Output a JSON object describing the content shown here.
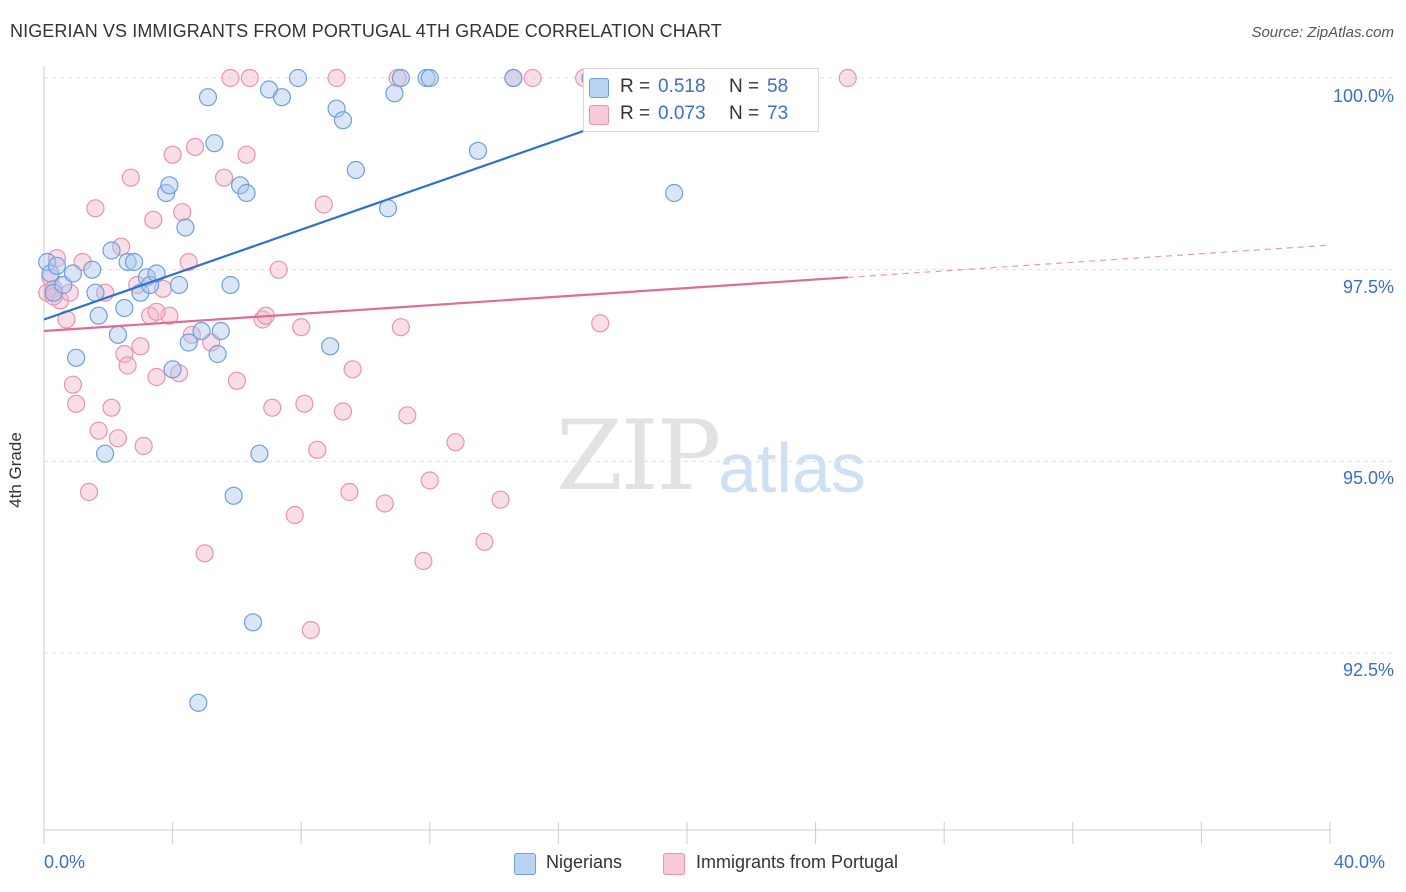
{
  "header": {
    "title": "NIGERIAN VS IMMIGRANTS FROM PORTUGAL 4TH GRADE CORRELATION CHART",
    "source": "Source: ZipAtlas.com"
  },
  "watermark": {
    "zip": "ZIP",
    "atlas": "atlas"
  },
  "legend_top": {
    "rows": [
      {
        "r_label": "R =",
        "r_value": "0.518",
        "n_label": "N =",
        "n_value": "58"
      },
      {
        "r_label": "R =",
        "r_value": "0.073",
        "n_label": "N =",
        "n_value": "73"
      }
    ]
  },
  "legend_bottom": {
    "items": [
      {
        "label": "Nigerians"
      },
      {
        "label": "Immigrants from Portugal"
      }
    ]
  },
  "colors": {
    "blue_fill": "#a8c8f0",
    "blue_stroke": "#6f9fd8",
    "blue_line": "#2f6fce",
    "pink_fill": "#f5b6c9",
    "pink_stroke": "#e793b0",
    "pink_line": "#e06b97",
    "grid": "#e0e0e0",
    "axis_text": "#3d6fc4"
  },
  "chart_data": {
    "type": "scatter",
    "title": "NIGERIAN VS IMMIGRANTS FROM PORTUGAL 4TH GRADE CORRELATION CHART",
    "xlabel": "",
    "ylabel": "4th Grade",
    "xlim": [
      0,
      40
    ],
    "ylim": [
      90.8,
      100.4
    ],
    "x_tick_labels": [
      "0.0%",
      "40.0%"
    ],
    "y_tick_labels": [
      "100.0%",
      "97.5%",
      "95.0%",
      "92.5%"
    ],
    "y_ticks": [
      100.0,
      97.5,
      95.0,
      92.5
    ],
    "grid": true,
    "series": [
      {
        "name": "Nigerians",
        "color": "blue",
        "r": 0.518,
        "n": 58,
        "trend": {
          "x": [
            0,
            21.5
          ],
          "y": [
            96.85,
            100.0
          ]
        },
        "points": [
          [
            0.1,
            97.6
          ],
          [
            0.2,
            97.45
          ],
          [
            0.3,
            97.2
          ],
          [
            0.4,
            97.55
          ],
          [
            0.6,
            97.3
          ],
          [
            0.9,
            97.45
          ],
          [
            1.0,
            96.35
          ],
          [
            1.5,
            97.5
          ],
          [
            1.6,
            97.2
          ],
          [
            1.7,
            96.9
          ],
          [
            1.9,
            95.1
          ],
          [
            2.1,
            97.75
          ],
          [
            2.3,
            96.65
          ],
          [
            2.5,
            97.0
          ],
          [
            2.6,
            97.6
          ],
          [
            2.8,
            97.6
          ],
          [
            3.0,
            97.2
          ],
          [
            3.2,
            97.4
          ],
          [
            3.3,
            97.3
          ],
          [
            3.5,
            97.45
          ],
          [
            3.8,
            98.5
          ],
          [
            3.9,
            98.6
          ],
          [
            4.0,
            96.2
          ],
          [
            4.2,
            97.3
          ],
          [
            4.4,
            98.05
          ],
          [
            4.5,
            96.55
          ],
          [
            4.9,
            96.7
          ],
          [
            5.1,
            99.75
          ],
          [
            5.3,
            99.15
          ],
          [
            5.4,
            96.4
          ],
          [
            5.5,
            96.7
          ],
          [
            5.8,
            97.3
          ],
          [
            5.9,
            94.55
          ],
          [
            6.1,
            98.6
          ],
          [
            6.3,
            98.5
          ],
          [
            6.5,
            92.9
          ],
          [
            6.7,
            95.1
          ],
          [
            7.0,
            99.85
          ],
          [
            7.4,
            99.75
          ],
          [
            7.9,
            100.0
          ],
          [
            9.1,
            99.6
          ],
          [
            9.3,
            99.45
          ],
          [
            8.9,
            96.5
          ],
          [
            9.7,
            98.8
          ],
          [
            10.7,
            98.3
          ],
          [
            10.9,
            99.8
          ],
          [
            11.1,
            100.0
          ],
          [
            11.9,
            100.0
          ],
          [
            12.0,
            100.0
          ],
          [
            13.5,
            99.05
          ],
          [
            14.6,
            100.0
          ],
          [
            17.0,
            100.0
          ],
          [
            17.7,
            100.0
          ],
          [
            18.6,
            100.0
          ],
          [
            19.3,
            100.0
          ],
          [
            19.6,
            98.5
          ],
          [
            21.5,
            100.0
          ],
          [
            4.8,
            91.85
          ]
        ]
      },
      {
        "name": "Immigrants from Portugal",
        "color": "pink",
        "r": 0.073,
        "n": 73,
        "trend": {
          "x": [
            0,
            25.0
          ],
          "y": [
            96.7,
            97.4
          ]
        },
        "trend_extension": {
          "x": [
            25.0,
            40.0
          ],
          "y": [
            97.4,
            97.82
          ]
        },
        "points": [
          [
            0.1,
            97.2
          ],
          [
            0.2,
            97.4
          ],
          [
            0.3,
            97.25
          ],
          [
            0.4,
            97.65
          ],
          [
            0.5,
            97.1
          ],
          [
            0.7,
            96.85
          ],
          [
            0.8,
            97.2
          ],
          [
            0.9,
            96.0
          ],
          [
            1.0,
            95.75
          ],
          [
            1.2,
            97.6
          ],
          [
            1.4,
            94.6
          ],
          [
            1.6,
            98.3
          ],
          [
            1.7,
            95.4
          ],
          [
            1.9,
            97.2
          ],
          [
            2.1,
            95.7
          ],
          [
            2.3,
            95.3
          ],
          [
            2.4,
            97.8
          ],
          [
            2.5,
            96.4
          ],
          [
            2.6,
            96.25
          ],
          [
            2.7,
            98.7
          ],
          [
            2.9,
            97.3
          ],
          [
            3.0,
            96.5
          ],
          [
            3.1,
            95.2
          ],
          [
            3.3,
            96.9
          ],
          [
            3.4,
            98.15
          ],
          [
            3.5,
            96.1
          ],
          [
            3.7,
            97.25
          ],
          [
            3.9,
            96.9
          ],
          [
            4.0,
            99.0
          ],
          [
            4.2,
            96.15
          ],
          [
            4.3,
            98.25
          ],
          [
            4.5,
            97.6
          ],
          [
            4.6,
            96.65
          ],
          [
            4.7,
            99.1
          ],
          [
            5.0,
            93.8
          ],
          [
            5.2,
            96.55
          ],
          [
            5.6,
            98.7
          ],
          [
            5.8,
            100.0
          ],
          [
            6.0,
            96.05
          ],
          [
            6.3,
            99.0
          ],
          [
            6.4,
            100.0
          ],
          [
            6.8,
            96.85
          ],
          [
            6.9,
            96.9
          ],
          [
            7.1,
            95.7
          ],
          [
            7.3,
            97.5
          ],
          [
            7.8,
            94.3
          ],
          [
            8.0,
            96.75
          ],
          [
            8.1,
            95.75
          ],
          [
            8.3,
            92.8
          ],
          [
            8.5,
            95.15
          ],
          [
            8.7,
            98.35
          ],
          [
            9.1,
            100.0
          ],
          [
            9.3,
            95.65
          ],
          [
            9.5,
            94.6
          ],
          [
            9.6,
            96.2
          ],
          [
            10.6,
            94.45
          ],
          [
            11.0,
            100.0
          ],
          [
            11.1,
            96.75
          ],
          [
            11.3,
            95.6
          ],
          [
            11.8,
            93.7
          ],
          [
            12.0,
            94.75
          ],
          [
            12.8,
            95.25
          ],
          [
            13.7,
            93.95
          ],
          [
            14.2,
            94.5
          ],
          [
            14.6,
            100.0
          ],
          [
            15.2,
            100.0
          ],
          [
            16.8,
            100.0
          ],
          [
            17.0,
            100.0
          ],
          [
            17.3,
            96.8
          ],
          [
            20.0,
            100.0
          ],
          [
            25.0,
            100.0
          ],
          [
            0.3,
            97.15
          ],
          [
            3.5,
            96.95
          ]
        ]
      }
    ]
  }
}
